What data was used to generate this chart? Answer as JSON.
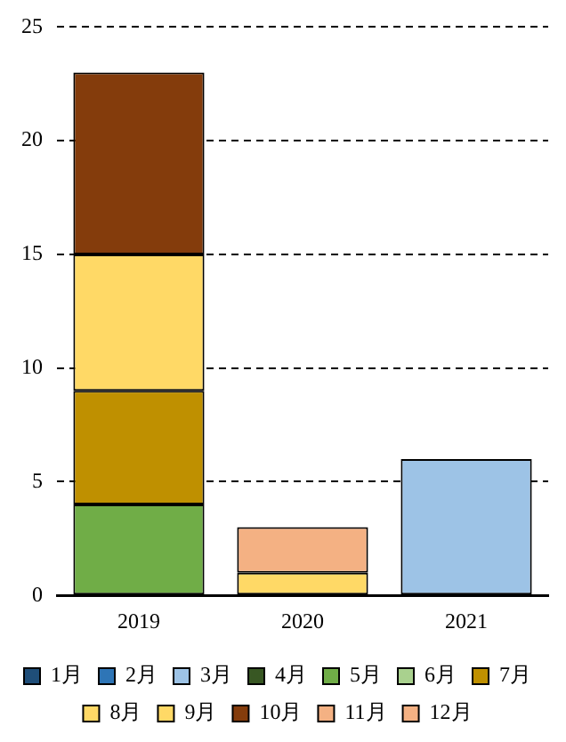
{
  "chart_data": {
    "type": "bar",
    "stacked": true,
    "categories": [
      "2019",
      "2020",
      "2021"
    ],
    "series": [
      {
        "name": "1月",
        "color": "#1f4e79",
        "values": [
          null,
          null,
          null
        ]
      },
      {
        "name": "2月",
        "color": "#2e75b6",
        "values": [
          null,
          null,
          null
        ]
      },
      {
        "name": "3月",
        "color": "#9dc3e6",
        "values": [
          null,
          null,
          6
        ]
      },
      {
        "name": "4月",
        "color": "#385723",
        "values": [
          null,
          null,
          null
        ]
      },
      {
        "name": "5月",
        "color": "#70ad47",
        "values": [
          4,
          null,
          null
        ]
      },
      {
        "name": "6月",
        "color": "#a9d18e",
        "values": [
          null,
          null,
          null
        ]
      },
      {
        "name": "7月",
        "color": "#bf9000",
        "values": [
          5,
          null,
          null
        ]
      },
      {
        "name": "8月",
        "color": "#ffd966",
        "values": [
          null,
          null,
          null
        ]
      },
      {
        "name": "9月",
        "color": "#ffd966",
        "values": [
          6,
          1,
          null
        ]
      },
      {
        "name": "10月",
        "color": "#843c0c",
        "values": [
          8,
          null,
          null
        ]
      },
      {
        "name": "11月",
        "color": "#f4b183",
        "values": [
          null,
          2,
          null
        ]
      },
      {
        "name": "12月",
        "color": "#f4b183",
        "values": [
          null,
          null,
          null
        ]
      }
    ],
    "ylim": [
      0,
      25
    ],
    "yticks": [
      0,
      5,
      10,
      15,
      20,
      25
    ],
    "grid": "y",
    "legend": "bottom"
  }
}
